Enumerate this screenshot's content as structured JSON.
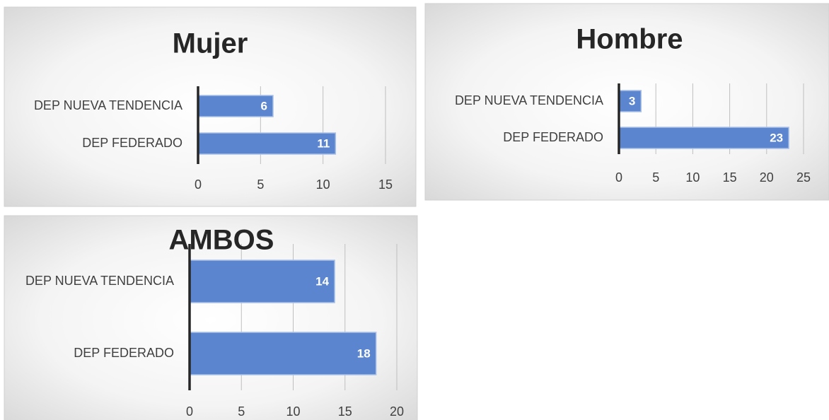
{
  "chart_data": [
    {
      "type": "bar",
      "title": "Mujer",
      "categories": [
        "DEP NUEVA TENDENCIA",
        "DEP FEDERADO"
      ],
      "values": [
        6,
        11
      ],
      "color": "#5b86cf",
      "xlim": [
        0,
        15
      ],
      "xticks": [
        0,
        5,
        10,
        15
      ],
      "grid": true
    },
    {
      "type": "bar",
      "title": "Hombre",
      "categories": [
        "DEP NUEVA TENDENCIA",
        "DEP FEDERADO"
      ],
      "values": [
        3,
        23
      ],
      "color": "#5b86cf",
      "xlim": [
        0,
        25
      ],
      "xticks": [
        0,
        5,
        10,
        15,
        20,
        25
      ],
      "grid": true
    },
    {
      "type": "bar",
      "title": "AMBOS",
      "categories": [
        "DEP NUEVA TENDENCIA",
        "DEP FEDERADO"
      ],
      "values": [
        14,
        18
      ],
      "color": "#5b86cf",
      "xlim": [
        0,
        20
      ],
      "xticks": [
        0,
        5,
        10,
        15,
        20
      ],
      "grid": true
    }
  ]
}
